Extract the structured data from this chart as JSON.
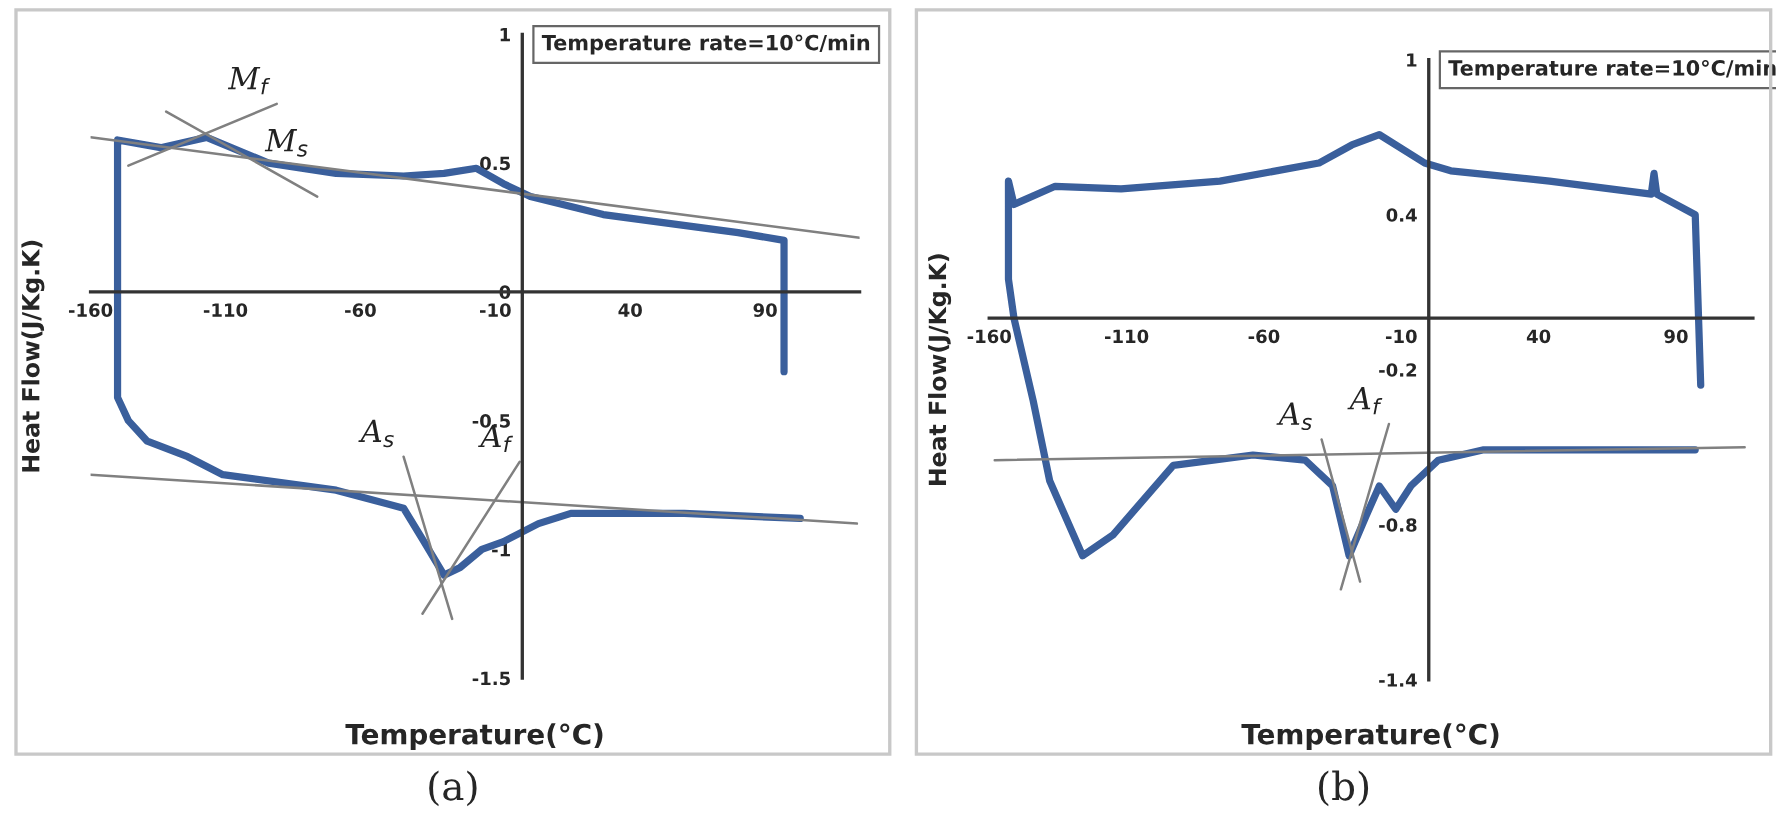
{
  "chart_data": [
    {
      "type": "line",
      "xlabel": "Temperature(°C)",
      "ylabel": "Heat Flow(J/Kg.K)",
      "xlim": [
        -160,
        125
      ],
      "ylim": [
        -1.5,
        1
      ],
      "xticks": [
        -160,
        -110,
        -60,
        -10,
        40,
        90
      ],
      "yticks": [
        -1.5,
        -1,
        -0.5,
        0,
        0.5,
        1
      ],
      "grid": false,
      "legend": false,
      "series": [
        {
          "color": "#3a5f9c",
          "x": [
            97,
            97,
            80,
            30,
            3,
            -7,
            -17,
            -29,
            -44,
            -69,
            -94,
            -117,
            -134,
            -150,
            -150,
            -146,
            -139,
            -124,
            -111,
            -69,
            -44,
            -37,
            -29,
            -23,
            -15,
            -7,
            6,
            18,
            60,
            103
          ],
          "values": [
            -0.31,
            0.2,
            0.23,
            0.3,
            0.37,
            0.42,
            0.48,
            0.46,
            0.45,
            0.46,
            0.5,
            0.6,
            0.56,
            0.59,
            -0.41,
            -0.5,
            -0.58,
            -0.64,
            -0.71,
            -0.77,
            -0.84,
            -0.96,
            -1.1,
            -1.07,
            -1.0,
            -0.97,
            -0.9,
            -0.86,
            -0.86,
            -0.88
          ]
        },
        {
          "name": "M$_{f}$",
          "color": "#808080",
          "x": [
            -146,
            -91
          ],
          "values": [
            0.49,
            0.73
          ]
        },
        {
          "name": "M$_{s}$",
          "color": "#808080",
          "x": [
            -132,
            -76
          ],
          "values": [
            0.7,
            0.37
          ]
        },
        {
          "name": "A$_{s}$",
          "color": "#808080",
          "x": [
            -26,
            -44
          ],
          "values": [
            -1.27,
            -0.64
          ]
        },
        {
          "name": "A$_{f}$",
          "color": "#808080",
          "x": [
            -37,
            -1
          ],
          "values": [
            -1.25,
            -0.66
          ]
        },
        {
          "color": "#808080",
          "x": [
            -160,
            125
          ],
          "values": [
            0.6,
            0.21
          ]
        },
        {
          "color": "#808080",
          "x": [
            -160,
            124
          ],
          "values": [
            -0.71,
            -0.9
          ]
        }
      ],
      "annotations": [
        "Temperature rate=10°C/min",
        "(a)"
      ]
    },
    {
      "type": "line",
      "xlabel": "Temperature(°C)",
      "ylabel": "Heat Flow(J/Kg.K)",
      "xlim": [
        -160,
        118
      ],
      "ylim": [
        -1.4,
        1
      ],
      "xticks": [
        -160,
        -110,
        -60,
        -10,
        40,
        90
      ],
      "yticks": [
        -1.4,
        -0.8,
        -0.2,
        0.4,
        1
      ],
      "grid": false,
      "legend": false,
      "series": [
        {
          "color": "#3a5f9c",
          "x": [
            99,
            97,
            83,
            82,
            81,
            44,
            8,
            -1.5,
            -18,
            -28,
            -40,
            -76,
            -112,
            -136,
            -151,
            -153,
            -153,
            -151,
            -144,
            -138,
            -126,
            -115,
            -93,
            -64,
            -45,
            -35,
            -29,
            -23,
            -18,
            -12,
            -6.5,
            3.5,
            20,
            68,
            97
          ],
          "values": [
            -0.26,
            0.4,
            0.48,
            0.56,
            0.48,
            0.53,
            0.57,
            0.6,
            0.71,
            0.67,
            0.6,
            0.53,
            0.5,
            0.51,
            0.44,
            0.53,
            0.15,
            0,
            -0.32,
            -0.63,
            -0.92,
            -0.84,
            -0.57,
            -0.53,
            -0.55,
            -0.65,
            -0.92,
            -0.77,
            -0.65,
            -0.74,
            -0.65,
            -0.55,
            -0.51,
            -0.51,
            -0.51
          ]
        },
        {
          "name": "A$_{s}$",
          "color": "#808080",
          "x": [
            -25,
            -39
          ],
          "values": [
            -1.02,
            -0.47
          ]
        },
        {
          "name": "A$_{f}$",
          "color": "#808080",
          "x": [
            -32,
            -14.5
          ],
          "values": [
            -1.05,
            -0.41
          ]
        },
        {
          "color": "#808080",
          "x": [
            -158,
            115
          ],
          "values": [
            -0.55,
            -0.5
          ]
        }
      ],
      "annotations": [
        "Temperature rate=10°C/min",
        "(b)"
      ]
    }
  ]
}
